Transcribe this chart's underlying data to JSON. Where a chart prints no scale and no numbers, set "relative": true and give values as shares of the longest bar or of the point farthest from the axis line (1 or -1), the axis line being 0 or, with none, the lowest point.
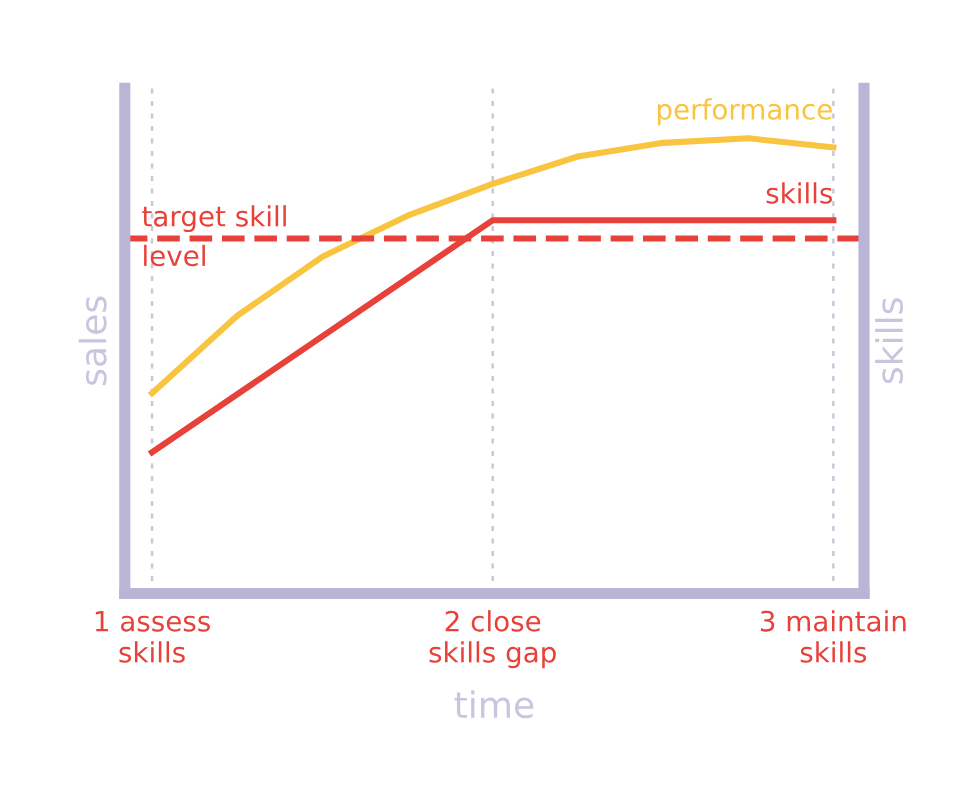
{
  "chart_data": {
    "type": "line",
    "relative": true,
    "xlabel": "time",
    "ylabel": "sales",
    "y2label": "skills",
    "xlim": [
      0.92,
      3.09
    ],
    "xticks": [
      {
        "value": 1,
        "label": "1 assess\nskills"
      },
      {
        "value": 2,
        "label": "2 close\nskills gap"
      },
      {
        "value": 3,
        "label": "3 maintain\nskills"
      }
    ],
    "series": [
      {
        "name": "performance",
        "color": "#f9c440",
        "x": [
          1,
          1.25,
          1.5,
          1.75,
          2,
          2.25,
          2.5,
          2.75,
          3
        ],
        "values": [
          0.44,
          0.61,
          0.74,
          0.83,
          0.9,
          0.96,
          0.99,
          1.0,
          0.98
        ]
      },
      {
        "name": "skills",
        "color": "#e8413a",
        "x": [
          1,
          2,
          3
        ],
        "values": [
          0.31,
          0.82,
          0.82
        ]
      }
    ],
    "ref_lines": [
      {
        "axis": "y",
        "value": 0.78,
        "label": "target skill\nlevel",
        "color": "#e8413a",
        "line_style": "dashed"
      }
    ],
    "grid": "x",
    "tick_labels": "x",
    "legend": false,
    "marker": "none",
    "line_style": "solid"
  }
}
